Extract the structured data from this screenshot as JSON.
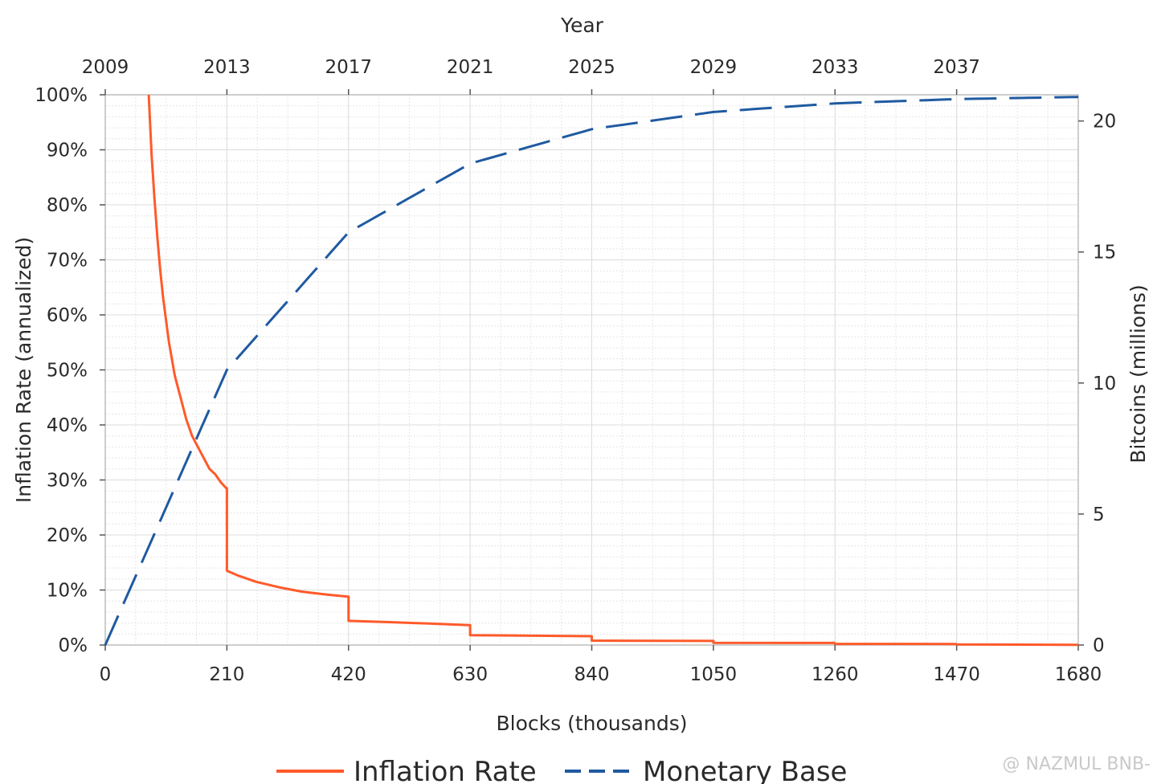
{
  "chart_data": {
    "type": "line",
    "xlabel": "Blocks (thousands)",
    "x2label": "Year",
    "ylabel": "Inflation Rate (annualized)",
    "y2label": "Bitcoins (millions)",
    "xlim": [
      0,
      1680
    ],
    "ylim": [
      0,
      100
    ],
    "y2lim": [
      0,
      21
    ],
    "x_ticks": [
      "0",
      "210",
      "420",
      "630",
      "840",
      "1050",
      "1260",
      "1470",
      "1680"
    ],
    "x_tick_values": [
      0,
      210,
      420,
      630,
      840,
      1050,
      1260,
      1470,
      1680
    ],
    "x2_ticks": [
      "2009",
      "2013",
      "2017",
      "2021",
      "2025",
      "2029",
      "2033",
      "2037"
    ],
    "x2_tick_values": [
      0,
      210,
      420,
      630,
      840,
      1050,
      1260,
      1470
    ],
    "y_ticks": [
      "0%",
      "10%",
      "20%",
      "30%",
      "40%",
      "50%",
      "60%",
      "70%",
      "80%",
      "90%",
      "100%"
    ],
    "y_tick_values": [
      0,
      10,
      20,
      30,
      40,
      50,
      60,
      70,
      80,
      90,
      100
    ],
    "y2_ticks": [
      "0",
      "5",
      "10",
      "15",
      "20"
    ],
    "y2_tick_values": [
      0,
      5,
      10,
      15,
      20
    ],
    "grid": true,
    "legend_position": "bottom",
    "series": [
      {
        "name": "Inflation Rate",
        "axis": "left",
        "color": "#ff5a2a",
        "style": "solid",
        "x": [
          75,
          80,
          85,
          90,
          95,
          100,
          105,
          110,
          115,
          120,
          125,
          130,
          140,
          150,
          160,
          170,
          180,
          190,
          200,
          209,
          210,
          210,
          230,
          260,
          300,
          340,
          380,
          419,
          420,
          420,
          480,
          560,
          629,
          630,
          630,
          740,
          839,
          840,
          840,
          1049,
          1050,
          1050,
          1259,
          1260,
          1469,
          1470,
          1680
        ],
        "y": [
          100,
          89,
          81,
          74,
          68,
          63,
          59,
          55,
          52,
          49,
          47,
          45,
          41,
          38,
          36,
          34,
          32,
          31,
          29.5,
          28.5,
          28.5,
          13.5,
          12.6,
          11.5,
          10.5,
          9.7,
          9.2,
          8.8,
          8.8,
          4.4,
          4.2,
          3.9,
          3.6,
          3.6,
          1.8,
          1.7,
          1.6,
          1.6,
          0.8,
          0.75,
          0.75,
          0.4,
          0.38,
          0.2,
          0.19,
          0.1,
          0.05
        ]
      },
      {
        "name": "Monetary Base",
        "axis": "right",
        "color": "#1f5aa0",
        "style": "dashed",
        "x": [
          0,
          210,
          420,
          630,
          840,
          1050,
          1260,
          1470,
          1680
        ],
        "y": [
          0,
          10.5,
          15.75,
          18.375,
          19.6875,
          20.34375,
          20.671875,
          20.8359375,
          20.918
        ]
      }
    ]
  },
  "watermark": "@ NAZMUL BNB-"
}
